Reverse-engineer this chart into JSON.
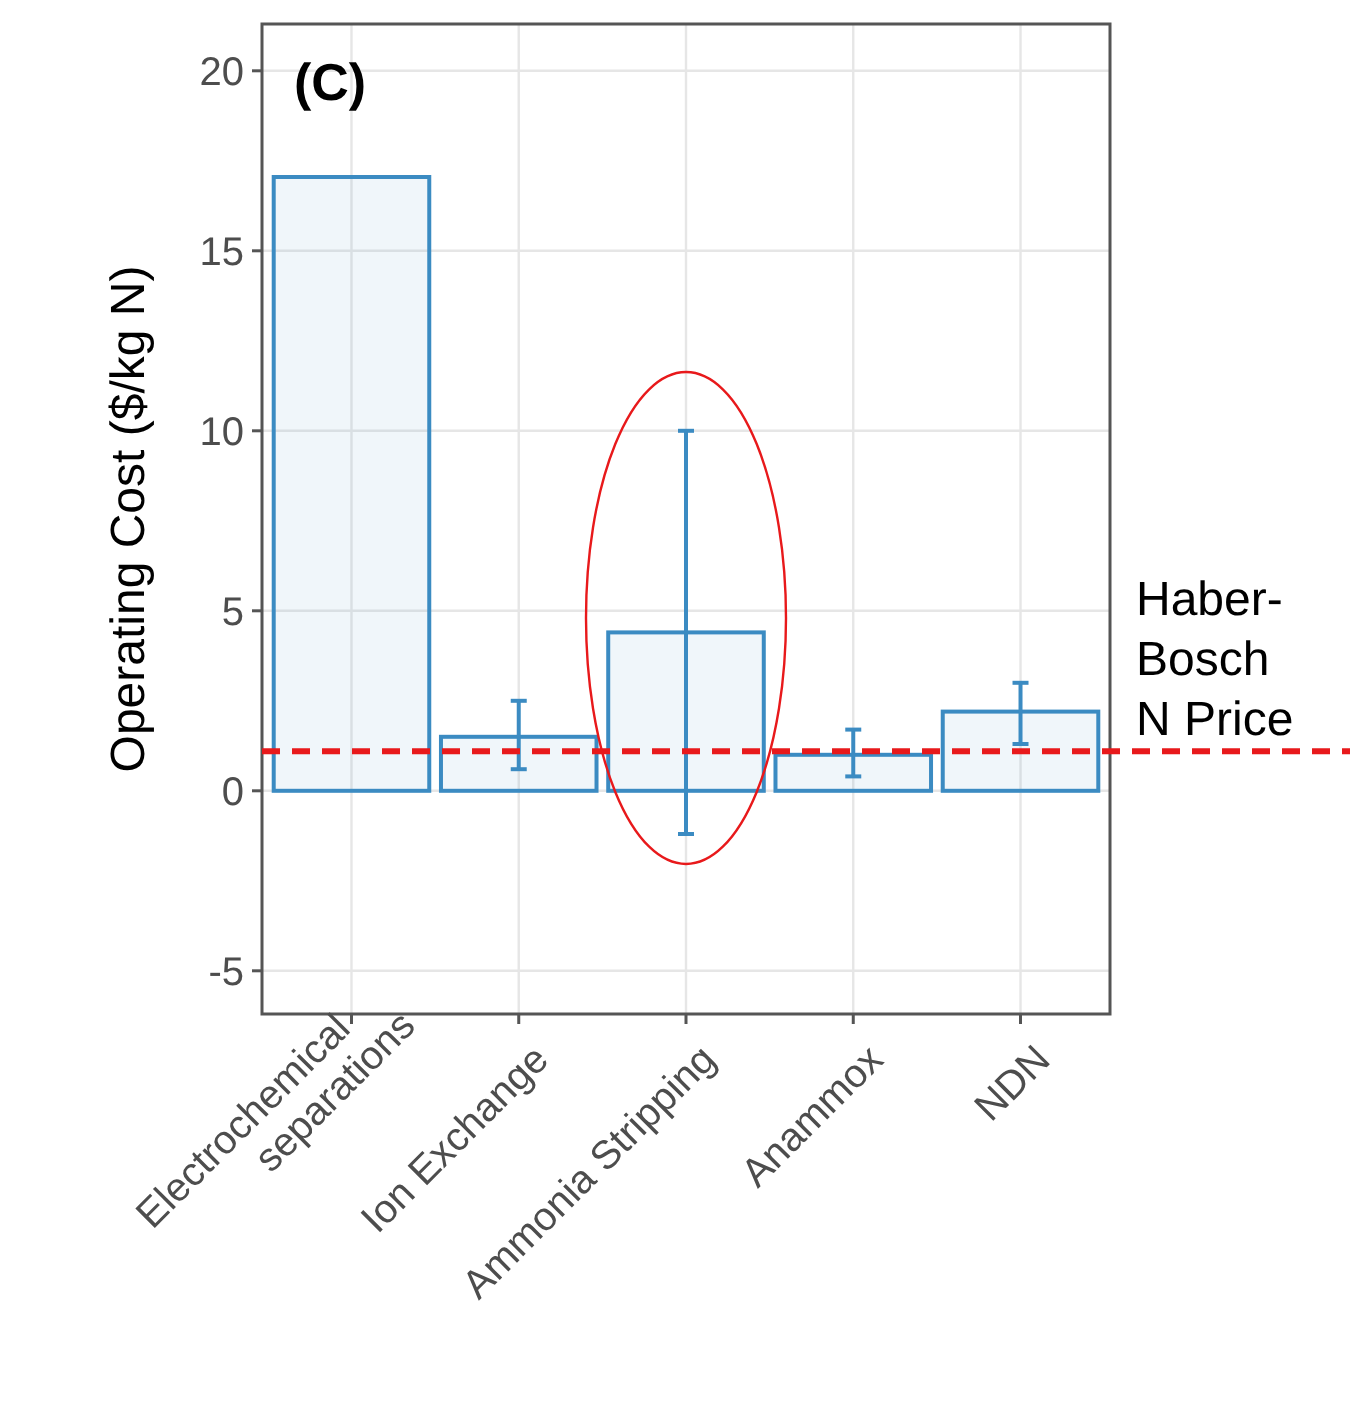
{
  "chart_data": {
    "type": "bar",
    "title": "(C)",
    "ylabel": "Operating Cost ($/kg N)",
    "categories": [
      "Electrochemical\nseparations",
      "Ion Exchange",
      "Ammonia Stripping",
      "Anammox",
      "NDN"
    ],
    "values": [
      17.05,
      1.5,
      4.4,
      1.0,
      2.2
    ],
    "errors": [
      null,
      [
        0.6,
        2.5
      ],
      [
        -1.2,
        10
      ],
      [
        0.4,
        1.7
      ],
      [
        1.3,
        3.0
      ]
    ],
    "color": "#3b8bc2",
    "ylim": [
      -6.2,
      21.3
    ],
    "yticks": [
      -5,
      0,
      5,
      10,
      15,
      20
    ],
    "grid": true,
    "ref_lines": [
      {
        "axis": "y",
        "value": 1.1,
        "label": "Haber-\nBosch\nN Price",
        "color": "#e8191b",
        "line_style": "dashed"
      }
    ]
  }
}
